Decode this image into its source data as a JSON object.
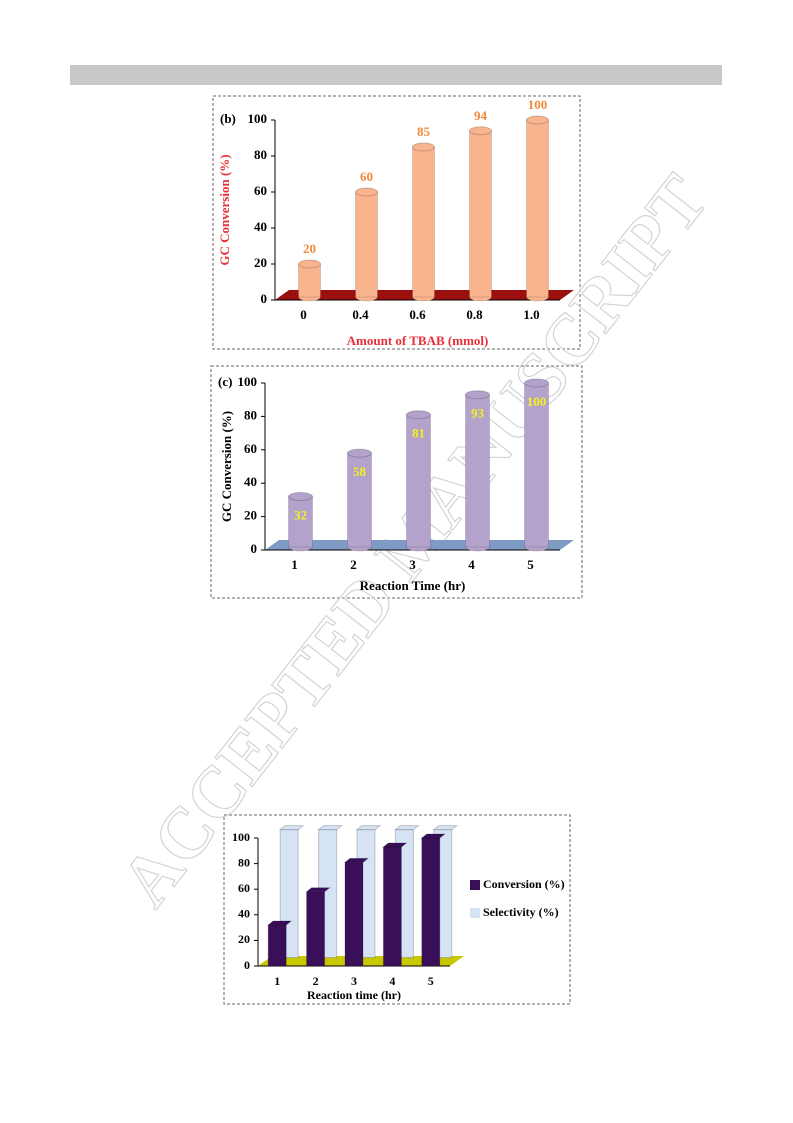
{
  "watermark": "ACCEPTED MANUSCRIPT",
  "chart_data": [
    {
      "type": "bar",
      "title": "(b)",
      "y_label": "GC Conversion (%)",
      "x_label": "Amount of TBAB (mmol)",
      "categories": [
        "0",
        "0.4",
        "0.6",
        "0.8",
        "1.0"
      ],
      "values": [
        20,
        60,
        85,
        94,
        100
      ],
      "color": "#f9b48e",
      "floor_color": "#9b0f0f",
      "value_label_color": "#f08a3c",
      "value_label_position": "above",
      "axis_label_color": "#e8303a",
      "ylim": [
        0,
        100
      ],
      "yticks": [
        0,
        20,
        40,
        60,
        80,
        100
      ]
    },
    {
      "type": "bar",
      "title": "(c)",
      "y_label": "GC Conversion (%)",
      "x_label": "Reaction Time (hr)",
      "categories": [
        "1",
        "2",
        "3",
        "4",
        "5"
      ],
      "values": [
        32,
        58,
        81,
        93,
        100
      ],
      "color": "#b3a3cc",
      "floor_color": "#7f9bc4",
      "value_label_color": "#f5f01e",
      "value_label_position": "inside",
      "axis_label_color": "#000000",
      "ylim": [
        0,
        100
      ],
      "yticks": [
        0,
        20,
        40,
        60,
        80,
        100
      ]
    },
    {
      "type": "grouped_bar",
      "x_label": "Reaction time (hr)",
      "categories": [
        "1",
        "2",
        "3",
        "4",
        "5"
      ],
      "series": [
        {
          "name": "Conversion (%)",
          "color": "#3a0f5a",
          "values": [
            32,
            58,
            81,
            93,
            100
          ]
        },
        {
          "name": "Selectivity (%)",
          "color": "#d6e3f5",
          "values": [
            100,
            100,
            100,
            100,
            100
          ]
        }
      ],
      "floor_color": "#c8c800",
      "axis_label_color": "#000000",
      "ylim": [
        0,
        100
      ],
      "yticks": [
        0,
        20,
        40,
        60,
        80,
        100
      ],
      "legend": "right"
    }
  ]
}
